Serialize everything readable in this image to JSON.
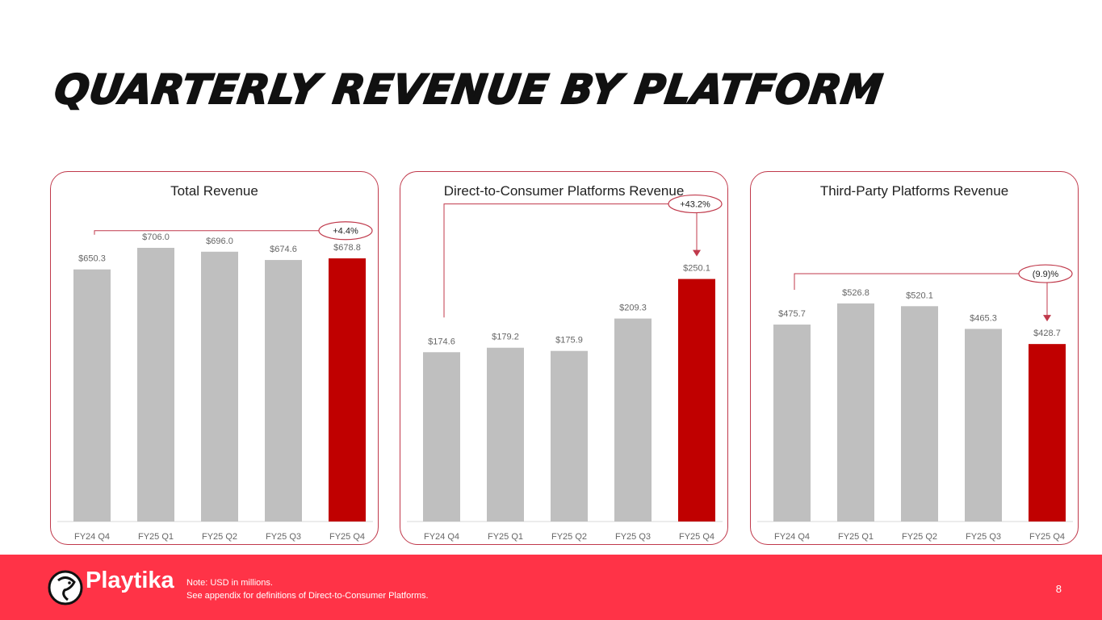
{
  "title": "QUARTERLY REVENUE BY PLATFORM",
  "chart_data": [
    {
      "type": "bar",
      "title": "Total Revenue",
      "categories": [
        "FY24 Q4",
        "FY25 Q1",
        "FY25 Q2",
        "FY25 Q3",
        "FY25 Q4"
      ],
      "values": [
        650.3,
        706.0,
        696.0,
        674.6,
        678.8
      ],
      "labels": [
        "$650.3",
        "$706.0",
        "$696.0",
        "$674.6",
        "$678.8"
      ],
      "ylim": [
        0,
        833
      ],
      "annotation": "+4.4%",
      "highlight_color": "#c00000",
      "bar_color": "#bfbfbf"
    },
    {
      "type": "bar",
      "title": "Direct-to-Consumer Platforms Revenue",
      "categories": [
        "FY24 Q4",
        "FY25 Q1",
        "FY25 Q2",
        "FY25 Q3",
        "FY25 Q4"
      ],
      "values": [
        174.6,
        179.2,
        175.9,
        209.3,
        250.1
      ],
      "labels": [
        "$174.6",
        "$179.2",
        "$175.9",
        "$209.3",
        "$250.1"
      ],
      "ylim": [
        0,
        333
      ],
      "annotation": "+43.2%",
      "highlight_color": "#c00000",
      "bar_color": "#bfbfbf"
    },
    {
      "type": "bar",
      "title": "Third-Party Platforms Revenue",
      "categories": [
        "FY24 Q4",
        "FY25 Q1",
        "FY25 Q2",
        "FY25 Q3",
        "FY25 Q4"
      ],
      "values": [
        475.7,
        526.8,
        520.1,
        465.3,
        428.7
      ],
      "labels": [
        "$475.7",
        "$526.8",
        "$520.1",
        "$465.3",
        "$428.7"
      ],
      "ylim": [
        0,
        780
      ],
      "annotation": "(9.9)%",
      "highlight_color": "#c00000",
      "bar_color": "#bfbfbf"
    }
  ],
  "footer": {
    "logo": "Playtika",
    "note_line1": "Note:  USD in millions.",
    "note_line2": "See appendix for definitions of Direct-to-Consumer Platforms.",
    "page": "8"
  }
}
